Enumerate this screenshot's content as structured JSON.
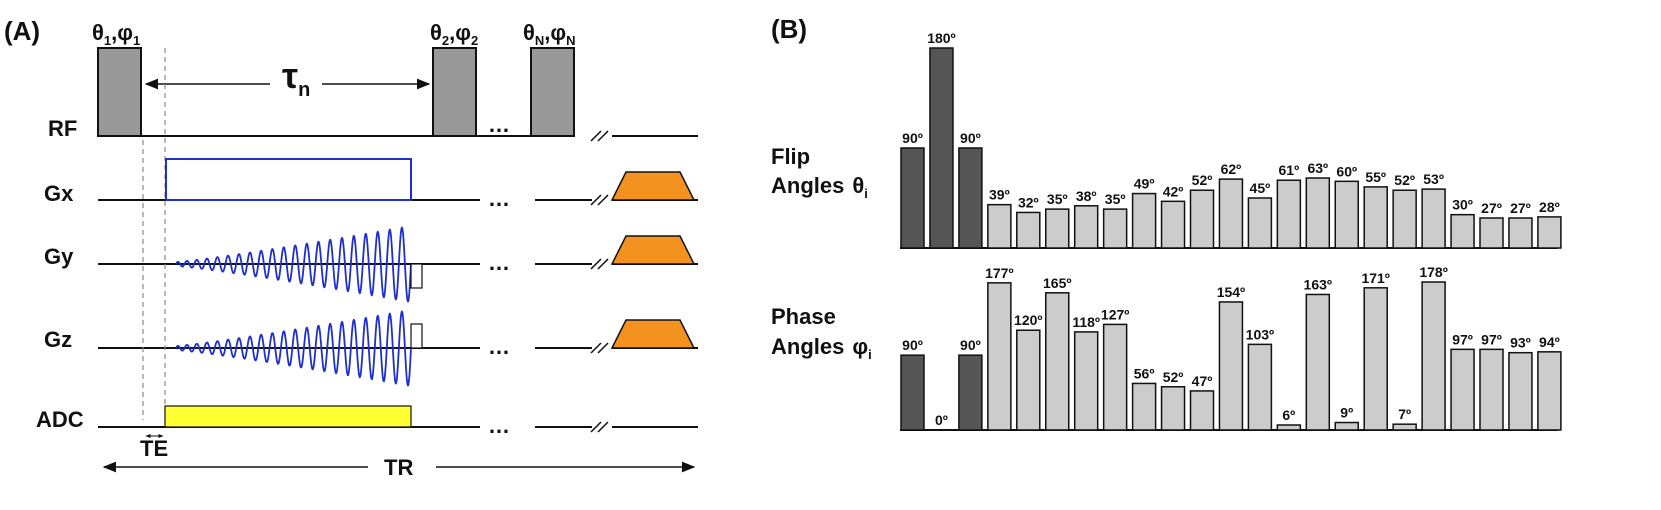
{
  "panel_a": {
    "label": "(A)",
    "rows": {
      "rf": "RF",
      "gx": "Gx",
      "gy": "Gy",
      "gz": "Gz",
      "adc": "ADC"
    },
    "pulse_labels": {
      "first": {
        "theta": "θ",
        "phi": "φ",
        "sub": "1"
      },
      "second": {
        "theta": "θ",
        "phi": "φ",
        "sub": "2"
      },
      "last": {
        "theta": "θ",
        "phi": "φ",
        "sub": "N"
      }
    },
    "tau": {
      "symbol": "τ",
      "sub": "n"
    },
    "ellipsis": "…",
    "te": "TE",
    "tr": "TR"
  },
  "panel_b": {
    "label": "(B)",
    "flip_label": {
      "line1": "Flip",
      "line2": "Angles",
      "symbol": "θ",
      "sub": "i"
    },
    "phase_label": {
      "line1": "Phase",
      "line2": "Angles",
      "symbol": "φ",
      "sub": "i"
    }
  },
  "chart_data": [
    {
      "type": "bar",
      "title": "Flip Angles θi",
      "unit": "º",
      "values": [
        90,
        180,
        90,
        39,
        32,
        35,
        38,
        35,
        49,
        42,
        52,
        62,
        45,
        61,
        63,
        60,
        55,
        52,
        53,
        30,
        27,
        27,
        28
      ],
      "labels": [
        "90º",
        "180º",
        "90º",
        "39º",
        "32º",
        "35º",
        "38º",
        "35º",
        "49º",
        "42º",
        "52º",
        "62º",
        "45º",
        "61º",
        "63º",
        "60º",
        "55º",
        "52º",
        "53º",
        "30º",
        "27º",
        "27º",
        "28º"
      ],
      "highlight_indices": [
        0,
        1,
        2
      ],
      "colors": {
        "highlight": "#555555",
        "normal": "#cccccc"
      }
    },
    {
      "type": "bar",
      "title": "Phase Angles φi",
      "unit": "º",
      "values": [
        90,
        0,
        90,
        177,
        120,
        165,
        118,
        127,
        56,
        52,
        47,
        154,
        103,
        6,
        163,
        9,
        171,
        7,
        178,
        97,
        97,
        93,
        94
      ],
      "labels": [
        "90º",
        "0º",
        "90º",
        "177º",
        "120º",
        "165º",
        "118º",
        "127º",
        "56º",
        "52º",
        "47º",
        "154º",
        "103º",
        "6º",
        "163º",
        "9º",
        "171º",
        "7º",
        "178º",
        "97º",
        "97º",
        "93º",
        "94º"
      ],
      "highlight_indices": [
        0,
        1,
        2
      ],
      "colors": {
        "highlight": "#555555",
        "normal": "#cccccc"
      }
    }
  ]
}
